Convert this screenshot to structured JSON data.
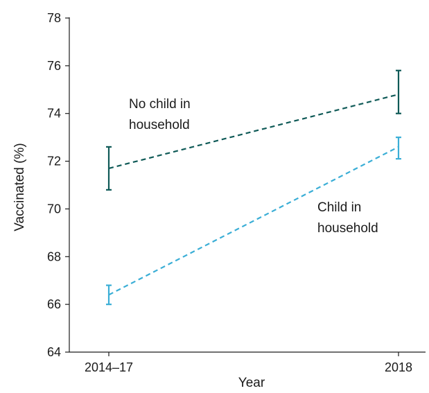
{
  "chart_data": {
    "type": "line",
    "title": "",
    "xlabel": "Year",
    "ylabel": "Vaccinated (%)",
    "categories": [
      "2014–17",
      "2018"
    ],
    "ylim": [
      64,
      78
    ],
    "yticks": [
      64,
      66,
      68,
      70,
      72,
      74,
      76,
      78
    ],
    "grid": false,
    "legend": "none",
    "series": [
      {
        "name": "No child in household",
        "label_lines": [
          "No child in",
          "household"
        ],
        "color": "#0f5a57",
        "line_style": "dashed",
        "values": [
          71.7,
          74.8
        ],
        "error_low": [
          70.8,
          74.0
        ],
        "error_high": [
          72.6,
          75.8
        ]
      },
      {
        "name": "Child in household",
        "label_lines": [
          "Child in",
          "household"
        ],
        "color": "#3aaed6",
        "line_style": "dashed",
        "values": [
          66.4,
          72.6
        ],
        "error_low": [
          66.0,
          72.1
        ],
        "error_high": [
          66.8,
          73.0
        ]
      }
    ]
  }
}
